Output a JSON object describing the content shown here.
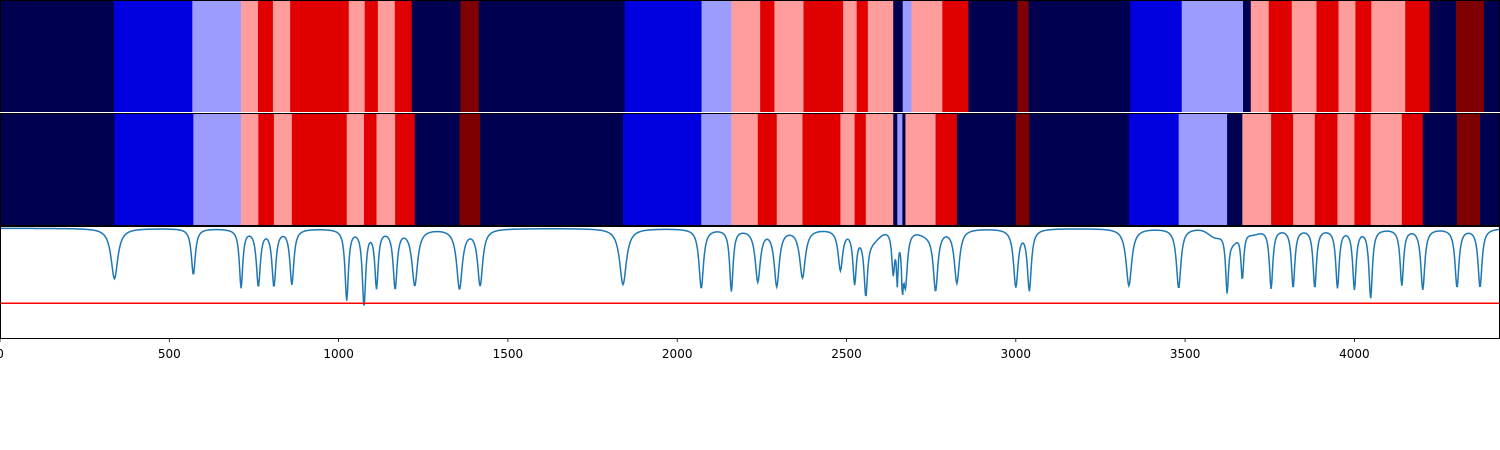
{
  "chart_data": [
    {
      "type": "heatmap",
      "title": "",
      "colormap": "seismic",
      "states": {
        "0": "#000050",
        "1": "#0000e0",
        "2": "#9c9cff",
        "3": "#ff9c9c",
        "4": "#e00000",
        "5": "#7f0000"
      },
      "x_range": [
        0,
        4430
      ],
      "segments": [
        [
          0,
          337,
          0
        ],
        [
          337,
          568,
          1
        ],
        [
          568,
          712,
          2
        ],
        [
          712,
          762,
          3
        ],
        [
          762,
          806,
          4
        ],
        [
          806,
          857,
          3
        ],
        [
          857,
          1030,
          4
        ],
        [
          1030,
          1077,
          3
        ],
        [
          1077,
          1116,
          4
        ],
        [
          1116,
          1166,
          3
        ],
        [
          1166,
          1216,
          4
        ],
        [
          1216,
          1360,
          0
        ],
        [
          1360,
          1414,
          5
        ],
        [
          1414,
          1845,
          0
        ],
        [
          1845,
          2072,
          1
        ],
        [
          2072,
          2160,
          2
        ],
        [
          2160,
          2245,
          3
        ],
        [
          2245,
          2287,
          4
        ],
        [
          2287,
          2373,
          3
        ],
        [
          2373,
          2490,
          4
        ],
        [
          2490,
          2530,
          3
        ],
        [
          2530,
          2563,
          4
        ],
        [
          2563,
          2638,
          3
        ],
        [
          2638,
          2666,
          0
        ],
        [
          2666,
          2692,
          2
        ],
        [
          2692,
          2783,
          3
        ],
        [
          2783,
          2860,
          4
        ],
        [
          2860,
          3005,
          0
        ],
        [
          3005,
          3038,
          5
        ],
        [
          3038,
          3338,
          0
        ],
        [
          3338,
          3490,
          1
        ],
        [
          3490,
          3671,
          2
        ],
        [
          3671,
          3694,
          0
        ],
        [
          3694,
          3747,
          3
        ],
        [
          3747,
          3815,
          4
        ],
        [
          3815,
          3888,
          3
        ],
        [
          3888,
          3953,
          4
        ],
        [
          3953,
          4003,
          3
        ],
        [
          4003,
          4050,
          4
        ],
        [
          4050,
          4150,
          3
        ],
        [
          4150,
          4222,
          4
        ],
        [
          4222,
          4300,
          0
        ],
        [
          4300,
          4383,
          5
        ],
        [
          4383,
          4430,
          0
        ]
      ]
    },
    {
      "type": "heatmap",
      "title": "",
      "colormap": "seismic",
      "x_range": [
        0,
        4430
      ],
      "segments": [
        [
          0,
          338,
          0
        ],
        [
          338,
          571,
          1
        ],
        [
          571,
          712,
          2
        ],
        [
          712,
          763,
          3
        ],
        [
          763,
          809,
          4
        ],
        [
          809,
          862,
          3
        ],
        [
          862,
          1024,
          4
        ],
        [
          1024,
          1075,
          3
        ],
        [
          1075,
          1112,
          4
        ],
        [
          1112,
          1167,
          3
        ],
        [
          1167,
          1225,
          4
        ],
        [
          1225,
          1357,
          0
        ],
        [
          1357,
          1418,
          5
        ],
        [
          1418,
          1840,
          0
        ],
        [
          1840,
          2071,
          1
        ],
        [
          2071,
          2160,
          2
        ],
        [
          2160,
          2238,
          3
        ],
        [
          2238,
          2294,
          4
        ],
        [
          2294,
          2370,
          3
        ],
        [
          2370,
          2482,
          4
        ],
        [
          2482,
          2524,
          3
        ],
        [
          2524,
          2557,
          4
        ],
        [
          2557,
          2638,
          3
        ],
        [
          2638,
          2650,
          0
        ],
        [
          2650,
          2665,
          2
        ],
        [
          2665,
          2674,
          0
        ],
        [
          2674,
          2763,
          3
        ],
        [
          2763,
          2826,
          4
        ],
        [
          2826,
          3000,
          0
        ],
        [
          3000,
          3040,
          5
        ],
        [
          3040,
          3334,
          0
        ],
        [
          3334,
          3481,
          1
        ],
        [
          3481,
          3624,
          2
        ],
        [
          3624,
          3669,
          0
        ],
        [
          3669,
          3754,
          3
        ],
        [
          3754,
          3819,
          4
        ],
        [
          3819,
          3883,
          3
        ],
        [
          3883,
          3950,
          4
        ],
        [
          3950,
          4000,
          3
        ],
        [
          4000,
          4048,
          4
        ],
        [
          4048,
          4140,
          3
        ],
        [
          4140,
          4202,
          4
        ],
        [
          4202,
          4303,
          0
        ],
        [
          4303,
          4371,
          5
        ],
        [
          4371,
          4430,
          0
        ]
      ]
    },
    {
      "type": "line",
      "title": "",
      "xlabel": "",
      "ylabel": "",
      "x_range": [
        0,
        4430
      ],
      "y_range": [
        0,
        1
      ],
      "grid": false,
      "ticks": [
        0,
        500,
        1000,
        1500,
        2000,
        2500,
        3000,
        3500,
        4000
      ],
      "tick_labels": [
        "0",
        "500",
        "1000",
        "1500",
        "2000",
        "2500",
        "3000",
        "3500",
        "4000"
      ],
      "series": [
        {
          "color": "#1f77b4",
          "baseline": 0.98,
          "dips": [
            [
              338,
              0.53,
              12
            ],
            [
              571,
              0.57,
              7
            ],
            [
              712,
              0.46,
              6
            ],
            [
              763,
              0.48,
              7
            ],
            [
              809,
              0.48,
              7
            ],
            [
              862,
              0.49,
              7
            ],
            [
              1024,
              0.35,
              6
            ],
            [
              1075,
              0.31,
              6
            ],
            [
              1112,
              0.47,
              6
            ],
            [
              1167,
              0.46,
              7
            ],
            [
              1225,
              0.48,
              10
            ],
            [
              1357,
              0.45,
              10
            ],
            [
              1418,
              0.48,
              9
            ],
            [
              1840,
              0.48,
              12
            ],
            [
              2071,
              0.45,
              8
            ],
            [
              2160,
              0.43,
              6
            ],
            [
              2238,
              0.52,
              9
            ],
            [
              2294,
              0.48,
              9
            ],
            [
              2370,
              0.55,
              10
            ],
            [
              2482,
              0.62,
              8
            ],
            [
              2524,
              0.53,
              6
            ],
            [
              2557,
              0.48,
              6
            ],
            [
              2638,
              0.61,
              5
            ],
            [
              2650,
              0.57,
              3
            ],
            [
              2665,
              0.59,
              3
            ],
            [
              2674,
              0.5,
              7
            ],
            [
              2763,
              0.46,
              8
            ],
            [
              2826,
              0.5,
              9
            ],
            [
              3000,
              0.47,
              8
            ],
            [
              3040,
              0.44,
              7
            ],
            [
              3334,
              0.47,
              10
            ],
            [
              3481,
              0.45,
              8
            ],
            [
              3624,
              0.48,
              5
            ],
            [
              3669,
              0.56,
              5
            ],
            [
              3754,
              0.45,
              6
            ],
            [
              3819,
              0.46,
              6
            ],
            [
              3883,
              0.46,
              6
            ],
            [
              3950,
              0.46,
              6
            ],
            [
              4000,
              0.45,
              6
            ],
            [
              4048,
              0.37,
              6
            ],
            [
              4140,
              0.48,
              6
            ],
            [
              4202,
              0.44,
              7
            ],
            [
              4303,
              0.46,
              7
            ],
            [
              4371,
              0.46,
              7
            ]
          ],
          "bumps": [
            [
              2560,
              0.06,
              25
            ],
            [
              2580,
              0.05,
              20
            ],
            [
              2740,
              0.04,
              25
            ],
            [
              3590,
              0.07,
              20
            ],
            [
              3640,
              0.1,
              15
            ],
            [
              3700,
              0.04,
              20
            ]
          ]
        },
        {
          "color": "#ff0000",
          "constant": 0.31
        }
      ]
    }
  ]
}
